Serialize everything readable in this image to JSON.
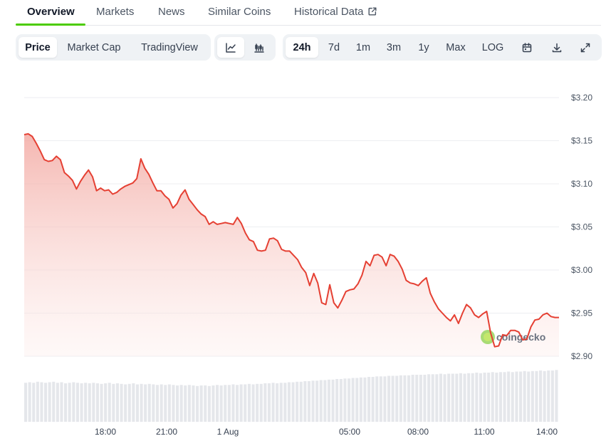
{
  "tabs": [
    {
      "label": "Overview"
    },
    {
      "label": "Markets"
    },
    {
      "label": "News"
    },
    {
      "label": "Similar Coins"
    },
    {
      "label": "Historical Data"
    }
  ],
  "toolbar": {
    "metric": [
      "Price",
      "Market Cap",
      "TradingView"
    ],
    "chart_style_icons": [
      "line-chart-icon",
      "candlestick-icon"
    ],
    "ranges": [
      "24h",
      "7d",
      "1m",
      "3m",
      "1y",
      "Max",
      "LOG"
    ],
    "action_icons": [
      "calendar-icon",
      "download-icon",
      "expand-icon"
    ],
    "active_metric": "Price",
    "active_range": "24h"
  },
  "watermark": "coingecko",
  "colors": {
    "line": "#e54033",
    "fill": "#f6c8c3",
    "accent": "#4bcc00",
    "volume": "#e5e7eb"
  },
  "chart_data": {
    "type": "area",
    "y_ticks": [
      "$3.20",
      "$3.15",
      "$3.10",
      "$3.05",
      "$3.00",
      "$2.95",
      "$2.90"
    ],
    "x_ticks": [
      "18:00",
      "21:00",
      "1 Aug",
      "05:00",
      "08:00",
      "11:00",
      "14:00"
    ],
    "ylim": [
      2.9,
      3.2
    ],
    "grid": true,
    "series": [
      {
        "values": [
          3.157,
          3.158,
          3.155,
          3.147,
          3.138,
          3.128,
          3.126,
          3.127,
          3.132,
          3.128,
          3.113,
          3.109,
          3.104,
          3.094,
          3.103,
          3.11,
          3.116,
          3.108,
          3.092,
          3.095,
          3.092,
          3.093,
          3.088,
          3.09,
          3.094,
          3.097,
          3.099,
          3.101,
          3.106,
          3.129,
          3.118,
          3.111,
          3.101,
          3.092,
          3.092,
          3.086,
          3.082,
          3.072,
          3.077,
          3.087,
          3.093,
          3.082,
          3.076,
          3.07,
          3.065,
          3.062,
          3.053,
          3.056,
          3.053,
          3.054,
          3.055,
          3.054,
          3.053,
          3.061,
          3.054,
          3.043,
          3.035,
          3.033,
          3.023,
          3.022,
          3.023,
          3.036,
          3.037,
          3.034,
          3.024,
          3.022,
          3.022,
          3.017,
          3.012,
          3.003,
          2.997,
          2.982,
          2.996,
          2.985,
          2.962,
          2.96,
          2.983,
          2.962,
          2.956,
          2.965,
          2.975,
          2.977,
          2.978,
          2.984,
          2.994,
          3.01,
          3.005,
          3.017,
          3.018,
          3.015,
          3.005,
          3.018,
          3.016,
          3.01,
          3.001,
          2.988,
          2.985,
          2.984,
          2.982,
          2.987,
          2.991,
          2.973,
          2.963,
          2.955,
          2.95,
          2.945,
          2.941,
          2.948,
          2.938,
          2.95,
          2.96,
          2.956,
          2.948,
          2.945,
          2.949,
          2.952,
          2.927,
          2.911,
          2.912,
          2.925,
          2.924,
          2.93,
          2.93,
          2.928,
          2.919,
          2.92,
          2.934,
          2.942,
          2.943,
          2.948,
          2.95,
          2.946,
          2.945,
          2.945
        ]
      }
    ],
    "volume": [
      0.73,
      0.74,
      0.73,
      0.75,
      0.74,
      0.73,
      0.74,
      0.75,
      0.73,
      0.74,
      0.72,
      0.73,
      0.74,
      0.73,
      0.72,
      0.73,
      0.72,
      0.73,
      0.72,
      0.71,
      0.72,
      0.73,
      0.71,
      0.72,
      0.71,
      0.7,
      0.71,
      0.72,
      0.7,
      0.71,
      0.7,
      0.71,
      0.7,
      0.69,
      0.7,
      0.69,
      0.7,
      0.69,
      0.68,
      0.69,
      0.68,
      0.69,
      0.68,
      0.67,
      0.68,
      0.68,
      0.67,
      0.68,
      0.69,
      0.68,
      0.69,
      0.69,
      0.7,
      0.69,
      0.7,
      0.7,
      0.71,
      0.7,
      0.71,
      0.71,
      0.72,
      0.72,
      0.73,
      0.72,
      0.73,
      0.73,
      0.74,
      0.74,
      0.75,
      0.75,
      0.76,
      0.76,
      0.77,
      0.77,
      0.78,
      0.78,
      0.79,
      0.79,
      0.8,
      0.8,
      0.81,
      0.81,
      0.82,
      0.82,
      0.83,
      0.83,
      0.84,
      0.84,
      0.85,
      0.85,
      0.85,
      0.86,
      0.86,
      0.86,
      0.87,
      0.87,
      0.87,
      0.88,
      0.88,
      0.88,
      0.88,
      0.89,
      0.89,
      0.89,
      0.9,
      0.89,
      0.9,
      0.9,
      0.9,
      0.91,
      0.9,
      0.91,
      0.91,
      0.92,
      0.91,
      0.92,
      0.92,
      0.93,
      0.92,
      0.93,
      0.93,
      0.94,
      0.93,
      0.94,
      0.94,
      0.95,
      0.94,
      0.95,
      0.95,
      0.96,
      0.95,
      0.96,
      0.96,
      0.97
    ]
  }
}
